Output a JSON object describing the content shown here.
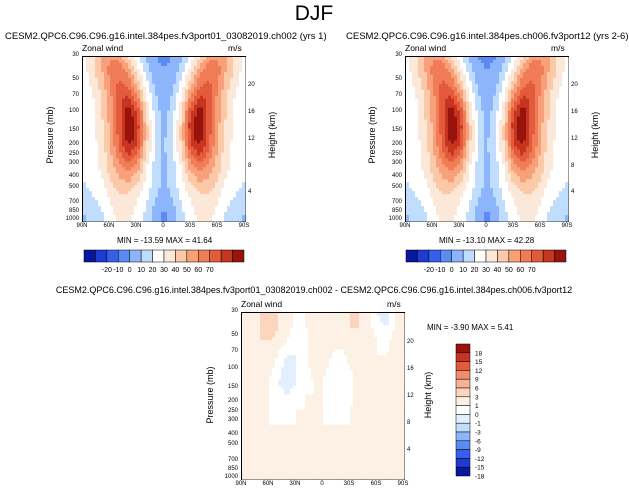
{
  "page": {
    "title": "DJF"
  },
  "palette": {
    "abs": [
      "#08179c",
      "#1f3bd1",
      "#3561ea",
      "#5b8af3",
      "#8db5fb",
      "#c1ddfe",
      "#ffffff",
      "#fce8d9",
      "#fbc8a8",
      "#f7a07a",
      "#f07c58",
      "#e45a3c",
      "#c7341f",
      "#97130c"
    ],
    "diff": [
      "#08179c",
      "#1f3bd1",
      "#3561ea",
      "#5b8af3",
      "#8db5fb",
      "#c1ddfe",
      "#e2efff",
      "#ffffff",
      "#fdf0e4",
      "#fbd6bc",
      "#f7b394",
      "#f18b68",
      "#e45a3c",
      "#c7341f",
      "#97130c"
    ]
  },
  "common": {
    "left_label": "Zonal wind",
    "right_label": "m/s",
    "ylabel": "Pressure (mb)",
    "y2label": "Height (km)",
    "pressure_ticks": [
      "30",
      "50",
      "70",
      "100",
      "150",
      "200",
      "250",
      "300",
      "400",
      "500",
      "700",
      "850",
      "1000"
    ],
    "height_ticks": [
      "20",
      "16",
      "12",
      "8",
      "4"
    ],
    "lat_ticks": [
      "90N",
      "60N",
      "30N",
      "0",
      "30S",
      "60S",
      "90S"
    ]
  },
  "panels": [
    {
      "title": "CESM2.QPC6.C96.C96.g16.intel.384pes.fv3port01_03082019.ch002 (yrs 1)",
      "min_max": "MIN = -13.59   MAX =  41.64"
    },
    {
      "title": "CESM2.QPC6.C96.C96.g16.intel.384pes.ch006.fv3port12 (yrs 2-6)",
      "min_max": "MIN = -13.10   MAX =  42.28"
    },
    {
      "title": "CESM2.QPC6.C96.C96.g16.intel.384pes.fv3port01_03082019.ch002 - CESM2.QPC6.C96.C96.g16.intel.384pes.ch006.fv3port12",
      "min_max": "MIN =  -3.90   MAX =   5.41"
    }
  ],
  "colorbar_abs": {
    "labels": [
      "-20",
      "-10",
      "0",
      "10",
      "20",
      "30",
      "40",
      "50",
      "60",
      "70"
    ]
  },
  "colorbar_diff": {
    "labels": [
      "18",
      "15",
      "12",
      "9",
      "6",
      "3",
      "1",
      "0",
      "-1",
      "-3",
      "-6",
      "-9",
      "-12",
      "-15",
      "-18"
    ]
  },
  "chart_data": [
    {
      "type": "heatmap",
      "title": "CESM2.QPC6.C96.C96.g16.intel.384pes.fv3port01_03082019.ch002 (yrs 1)",
      "xlabel": "",
      "ylabel": "Pressure (mb)",
      "y2label": "Height (km)",
      "units": "m/s",
      "y_scale": "log",
      "y_reversed": true,
      "xlim": [
        90,
        -90
      ],
      "ylim": [
        1000,
        30
      ],
      "x": [
        90,
        80,
        70,
        60,
        50,
        40,
        30,
        20,
        10,
        0,
        -10,
        -20,
        -30,
        -40,
        -50,
        -60,
        -70,
        -80,
        -90
      ],
      "y": [
        30,
        50,
        70,
        100,
        150,
        200,
        250,
        300,
        400,
        500,
        700,
        850,
        1000
      ],
      "values": [
        [
          2,
          8,
          14,
          20,
          18,
          10,
          2,
          -6,
          -10,
          -11,
          -10,
          -6,
          2,
          10,
          18,
          20,
          14,
          8,
          2
        ],
        [
          2,
          8,
          14,
          22,
          24,
          18,
          8,
          -2,
          -8,
          -10,
          -8,
          -2,
          8,
          18,
          24,
          22,
          14,
          8,
          2
        ],
        [
          2,
          6,
          12,
          20,
          26,
          24,
          14,
          2,
          -6,
          -8,
          -6,
          2,
          14,
          24,
          26,
          20,
          12,
          6,
          2
        ],
        [
          2,
          4,
          10,
          18,
          28,
          32,
          22,
          6,
          -4,
          -8,
          -4,
          6,
          22,
          32,
          28,
          18,
          10,
          4,
          2
        ],
        [
          2,
          4,
          10,
          18,
          28,
          38,
          30,
          10,
          -2,
          -8,
          -2,
          10,
          30,
          38,
          28,
          18,
          10,
          4,
          2
        ],
        [
          0,
          2,
          8,
          16,
          28,
          40,
          34,
          12,
          0,
          -8,
          0,
          12,
          34,
          40,
          28,
          16,
          8,
          2,
          0
        ],
        [
          0,
          2,
          8,
          16,
          26,
          38,
          32,
          12,
          0,
          -6,
          0,
          12,
          32,
          38,
          26,
          16,
          8,
          2,
          0
        ],
        [
          0,
          2,
          6,
          14,
          24,
          32,
          26,
          10,
          0,
          -6,
          0,
          10,
          26,
          32,
          24,
          14,
          6,
          2,
          0
        ],
        [
          0,
          2,
          6,
          12,
          18,
          22,
          18,
          6,
          -2,
          -6,
          -2,
          6,
          18,
          22,
          18,
          12,
          6,
          2,
          0
        ],
        [
          0,
          2,
          4,
          10,
          14,
          16,
          12,
          4,
          -2,
          -6,
          -2,
          4,
          12,
          16,
          14,
          10,
          4,
          2,
          0
        ],
        [
          -2,
          0,
          2,
          6,
          10,
          10,
          6,
          2,
          -4,
          -8,
          -4,
          2,
          6,
          10,
          10,
          6,
          2,
          0,
          -2
        ],
        [
          -4,
          -2,
          0,
          4,
          8,
          8,
          4,
          0,
          -6,
          -10,
          -6,
          0,
          4,
          8,
          8,
          4,
          0,
          -2,
          -4
        ],
        [
          -6,
          -4,
          -2,
          2,
          6,
          6,
          2,
          -2,
          -8,
          -12,
          -8,
          -2,
          2,
          6,
          6,
          2,
          -2,
          -4,
          -6
        ]
      ]
    },
    {
      "type": "heatmap",
      "title": "CESM2.QPC6.C96.C96.g16.intel.384pes.ch006.fv3port12 (yrs 2-6)",
      "xlabel": "",
      "ylabel": "Pressure (mb)",
      "y2label": "Height (km)",
      "units": "m/s",
      "y_scale": "log",
      "y_reversed": true,
      "xlim": [
        90,
        -90
      ],
      "ylim": [
        1000,
        30
      ],
      "x": [
        90,
        80,
        70,
        60,
        50,
        40,
        30,
        20,
        10,
        0,
        -10,
        -20,
        -30,
        -40,
        -50,
        -60,
        -70,
        -80,
        -90
      ],
      "y": [
        30,
        50,
        70,
        100,
        150,
        200,
        250,
        300,
        400,
        500,
        700,
        850,
        1000
      ],
      "values": [
        [
          2,
          8,
          14,
          20,
          18,
          10,
          2,
          -6,
          -10,
          -12,
          -10,
          -6,
          2,
          10,
          18,
          20,
          14,
          8,
          2
        ],
        [
          2,
          8,
          14,
          22,
          24,
          18,
          8,
          -2,
          -8,
          -10,
          -8,
          -2,
          8,
          18,
          24,
          22,
          14,
          8,
          2
        ],
        [
          2,
          6,
          12,
          20,
          26,
          24,
          14,
          2,
          -6,
          -8,
          -6,
          2,
          14,
          24,
          26,
          20,
          12,
          6,
          2
        ],
        [
          2,
          4,
          10,
          18,
          28,
          32,
          22,
          6,
          -4,
          -8,
          -4,
          6,
          22,
          32,
          28,
          18,
          10,
          4,
          2
        ],
        [
          2,
          4,
          10,
          18,
          28,
          38,
          30,
          10,
          -2,
          -8,
          -2,
          10,
          30,
          38,
          28,
          18,
          10,
          4,
          2
        ],
        [
          0,
          2,
          8,
          16,
          28,
          40,
          34,
          12,
          0,
          -8,
          0,
          12,
          34,
          40,
          28,
          16,
          8,
          2,
          0
        ],
        [
          0,
          2,
          8,
          16,
          26,
          38,
          32,
          12,
          0,
          -6,
          0,
          12,
          32,
          38,
          26,
          16,
          8,
          2,
          0
        ],
        [
          0,
          2,
          6,
          14,
          24,
          32,
          26,
          10,
          0,
          -6,
          0,
          10,
          26,
          32,
          24,
          14,
          6,
          2,
          0
        ],
        [
          0,
          2,
          6,
          12,
          18,
          22,
          18,
          6,
          -2,
          -6,
          -2,
          6,
          18,
          22,
          18,
          12,
          6,
          2,
          0
        ],
        [
          0,
          2,
          4,
          10,
          14,
          16,
          12,
          4,
          -2,
          -6,
          -2,
          4,
          12,
          16,
          14,
          10,
          4,
          2,
          0
        ],
        [
          -2,
          0,
          2,
          6,
          10,
          10,
          6,
          2,
          -4,
          -8,
          -4,
          2,
          6,
          10,
          10,
          6,
          2,
          0,
          -2
        ],
        [
          -4,
          -2,
          0,
          4,
          8,
          8,
          4,
          0,
          -6,
          -10,
          -6,
          0,
          4,
          8,
          8,
          4,
          0,
          -2,
          -4
        ],
        [
          -6,
          -4,
          -2,
          2,
          6,
          6,
          2,
          -2,
          -8,
          -12,
          -8,
          -2,
          2,
          6,
          6,
          2,
          -2,
          -4,
          -6
        ]
      ]
    },
    {
      "type": "heatmap",
      "title": "CESM2.QPC6.C96.C96.g16.intel.384pes.fv3port01_03082019.ch002 - CESM2.QPC6.C96.C96.g16.intel.384pes.ch006.fv3port12",
      "xlabel": "",
      "ylabel": "Pressure (mb)",
      "y2label": "Height (km)",
      "units": "m/s",
      "y_scale": "log",
      "y_reversed": true,
      "xlim": [
        90,
        -90
      ],
      "ylim": [
        1000,
        30
      ],
      "x": [
        90,
        80,
        70,
        60,
        50,
        40,
        30,
        20,
        10,
        0,
        -10,
        -20,
        -30,
        -40,
        -50,
        -60,
        -70,
        -80,
        -90
      ],
      "y": [
        30,
        50,
        70,
        100,
        150,
        200,
        250,
        300,
        400,
        500,
        700,
        850,
        1000
      ],
      "values": [
        [
          0,
          0.5,
          1,
          2,
          1,
          0.5,
          -0.5,
          0,
          0.5,
          0.5,
          0,
          0.5,
          1,
          1,
          0.5,
          -1,
          -2,
          0,
          0.5
        ],
        [
          0,
          0.5,
          1,
          2,
          1,
          0.5,
          -0.5,
          0,
          0.5,
          0.5,
          0.5,
          1,
          1,
          1,
          0.5,
          -0.5,
          -1,
          0,
          0.5
        ],
        [
          0.5,
          0.5,
          1,
          1,
          0.5,
          0,
          -1,
          -0.5,
          0.5,
          0.5,
          0.5,
          0.5,
          1,
          0.5,
          0.5,
          0,
          -0.5,
          0.5,
          0.5
        ],
        [
          0.5,
          0.5,
          1,
          0.5,
          0,
          -1,
          -1,
          -0.5,
          0.5,
          0.5,
          0,
          -0.5,
          0.5,
          0.5,
          0.5,
          0,
          0,
          0.5,
          0.5
        ],
        [
          0.5,
          1,
          1,
          0.5,
          -0.5,
          -1.5,
          -1,
          -0.5,
          0.5,
          0.5,
          -0.5,
          -1,
          0,
          0.5,
          0.5,
          0.5,
          0.5,
          0.5,
          0.5
        ],
        [
          0.5,
          1,
          0.5,
          0,
          -1,
          -1.5,
          -1,
          -0.5,
          0,
          0,
          -1,
          -1,
          -0.5,
          0.5,
          0.5,
          0.5,
          0.5,
          0.5,
          0.5
        ],
        [
          0.5,
          0.5,
          0.5,
          0,
          -0.5,
          -1,
          -0.5,
          0,
          0,
          0,
          -0.5,
          -1,
          -0.5,
          0.5,
          0.5,
          0.5,
          0.5,
          0,
          0.5
        ],
        [
          0.5,
          0.5,
          0.5,
          0,
          -0.5,
          -0.5,
          0,
          0,
          0,
          0,
          -0.5,
          -0.5,
          0,
          0.5,
          0.5,
          0.5,
          0,
          0,
          0.5
        ],
        [
          0.5,
          0.5,
          0.5,
          0,
          0,
          0,
          0,
          0.5,
          0,
          0,
          0,
          0,
          0,
          0.5,
          0.5,
          0,
          0,
          0,
          0.5
        ],
        [
          0.5,
          0.5,
          0,
          0,
          0,
          0,
          0,
          0.5,
          0,
          0,
          0,
          0,
          0,
          0,
          0,
          0,
          0,
          0,
          0
        ],
        [
          0,
          0.5,
          0,
          0,
          0,
          0,
          0,
          0,
          0,
          0,
          0,
          0,
          0,
          0,
          0,
          0,
          0,
          0,
          0
        ],
        [
          0,
          0,
          0,
          0,
          0,
          0,
          0,
          0,
          0,
          0,
          0,
          0,
          0,
          0,
          0,
          0,
          0,
          0,
          0
        ],
        [
          0,
          0,
          0,
          0,
          0,
          0,
          0,
          0,
          0,
          0,
          0,
          0,
          0,
          0,
          0,
          0,
          0,
          0,
          0
        ]
      ]
    }
  ]
}
